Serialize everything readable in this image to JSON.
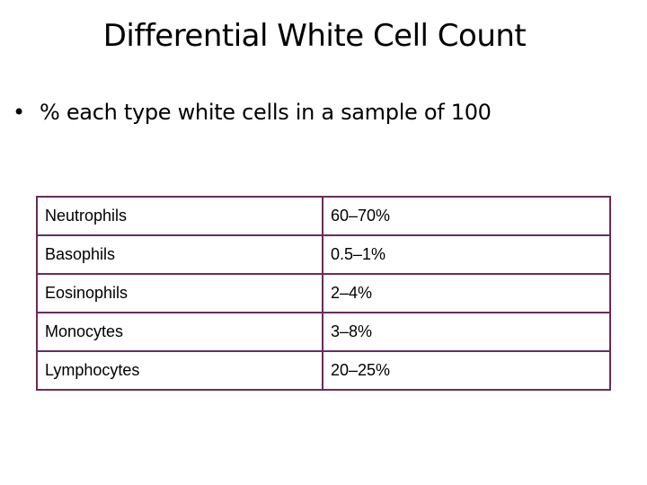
{
  "slide": {
    "title": "Differential White Cell Count",
    "bullet_marker": "•",
    "bullet_text": "% each type white cells in a sample of 100"
  },
  "table": {
    "rows": [
      {
        "type": "Neutrophils",
        "range": "60–70%"
      },
      {
        "type": "Basophils",
        "range": "0.5–1%"
      },
      {
        "type": "Eosinophils",
        "range": "2–4%"
      },
      {
        "type": "Monocytes",
        "range": "3–8%"
      },
      {
        "type": "Lymphocytes",
        "range": "20–25%"
      }
    ]
  },
  "colors": {
    "table_border": "#6b2a5e",
    "background": "#ffffff",
    "text": "#000000"
  }
}
